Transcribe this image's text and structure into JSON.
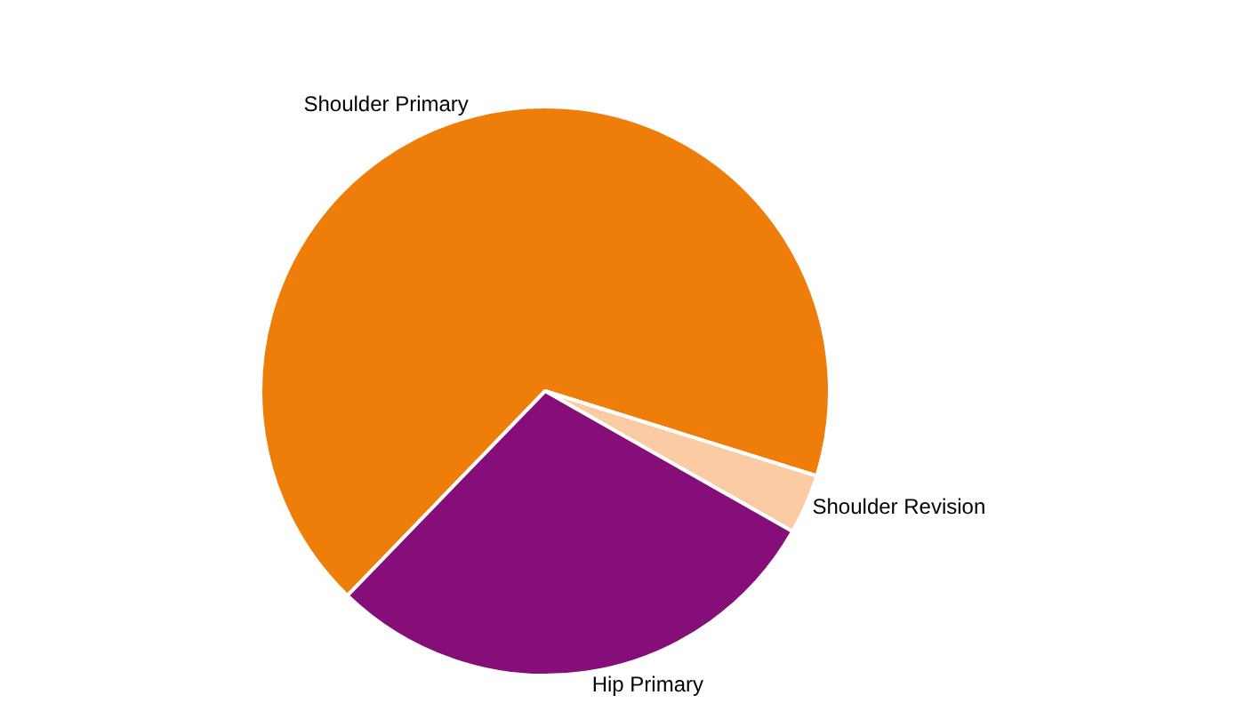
{
  "chart_data": {
    "type": "pie",
    "categories": [
      "Shoulder Primary",
      "Shoulder Revision",
      "Hip Primary"
    ],
    "values": [
      67.6,
      3.4,
      29.0
    ],
    "colors": [
      "#ef7d0a",
      "#fbcba3",
      "#850e78"
    ],
    "legend": false
  }
}
